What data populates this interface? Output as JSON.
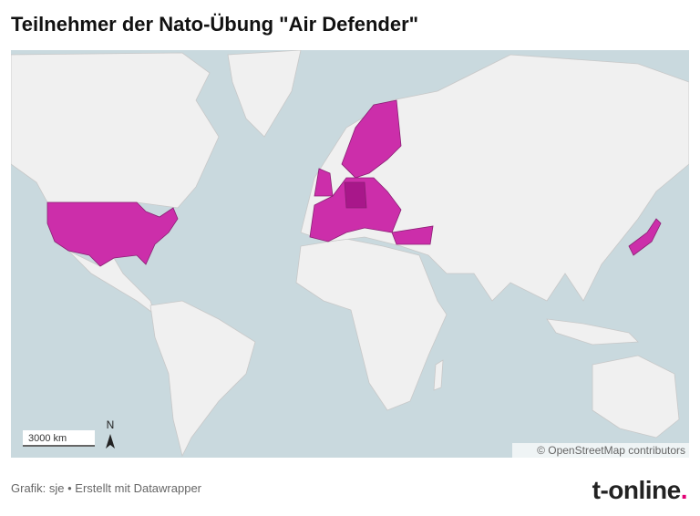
{
  "header": {
    "title": "Teilnehmer der Nato-Übung \"Air Defender\""
  },
  "map": {
    "scale_label": "3000 km",
    "north_label": "N",
    "attribution": "© OpenStreetMap contributors"
  },
  "footer": {
    "credit": "Grafik: sje • Erstellt mit Datawrapper",
    "logo": "t-online",
    "logo_dot": "."
  }
}
